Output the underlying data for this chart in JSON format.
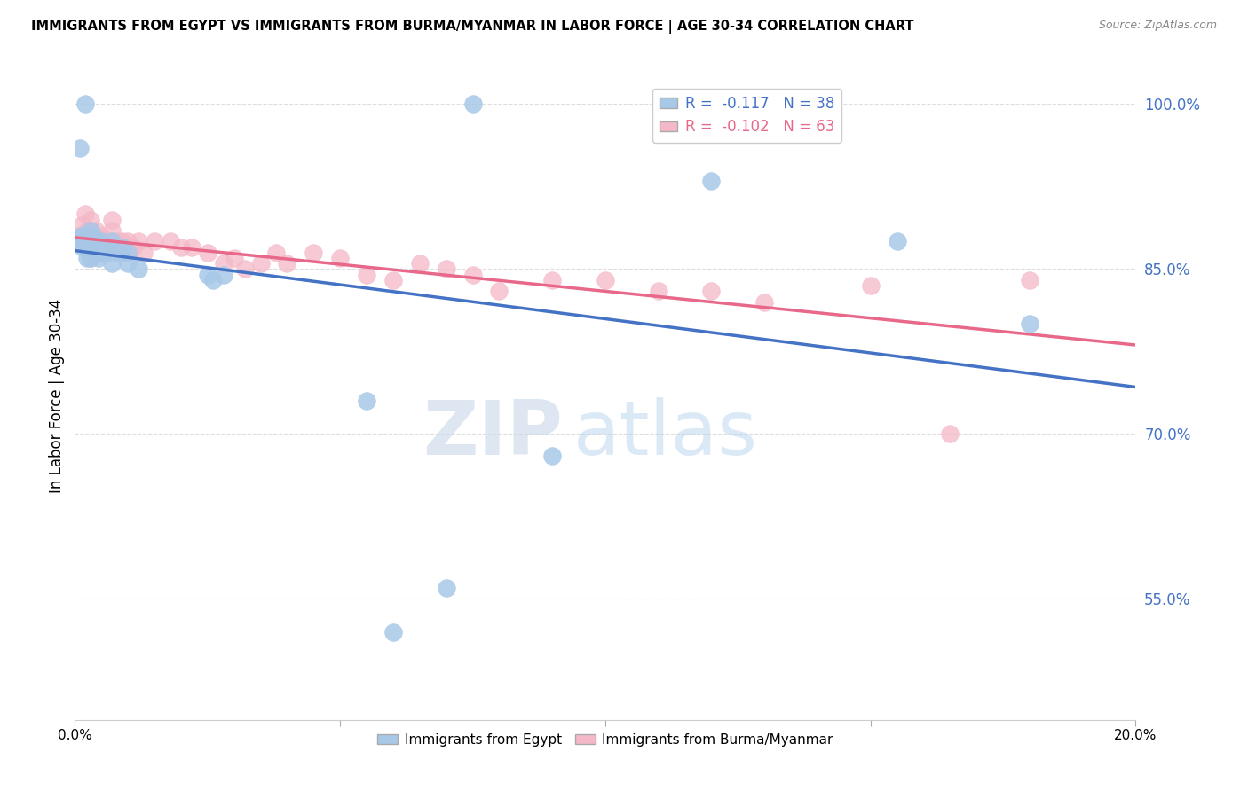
{
  "title": "IMMIGRANTS FROM EGYPT VS IMMIGRANTS FROM BURMA/MYANMAR IN LABOR FORCE | AGE 30-34 CORRELATION CHART",
  "source": "Source: ZipAtlas.com",
  "ylabel": "In Labor Force | Age 30-34",
  "xlim": [
    0.0,
    0.2
  ],
  "ylim": [
    0.44,
    1.03
  ],
  "egypt_R": -0.117,
  "egypt_N": 38,
  "burma_R": -0.102,
  "burma_N": 63,
  "egypt_color": "#a8c8e8",
  "burma_color": "#f4b8c8",
  "egypt_line_color": "#4472c4",
  "burma_line_color": "#e8688a",
  "legend_egypt_label": "Immigrants from Egypt",
  "legend_burma_label": "Immigrants from Burma/Myanmar",
  "watermark_zip": "ZIP",
  "watermark_atlas": "atlas",
  "background_color": "#ffffff",
  "grid_color": "#dddddd",
  "ytick_vals": [
    0.55,
    0.7,
    0.85,
    1.0
  ],
  "ytick_labels": [
    "55.0%",
    "70.0%",
    "85.0%",
    "100.0%"
  ],
  "egypt_x": [
    0.0005,
    0.001,
    0.0013,
    0.0015,
    0.0018,
    0.002,
    0.002,
    0.0022,
    0.0025,
    0.003,
    0.003,
    0.003,
    0.0035,
    0.004,
    0.004,
    0.0045,
    0.005,
    0.005,
    0.006,
    0.006,
    0.007,
    0.007,
    0.008,
    0.009,
    0.01,
    0.01,
    0.012,
    0.025,
    0.026,
    0.028,
    0.055,
    0.06,
    0.07,
    0.075,
    0.09,
    0.12,
    0.155,
    0.18
  ],
  "egypt_y": [
    0.878,
    0.96,
    0.88,
    0.87,
    0.88,
    0.875,
    1.0,
    0.86,
    0.87,
    0.875,
    0.86,
    0.885,
    0.88,
    0.87,
    0.875,
    0.86,
    0.865,
    0.875,
    0.865,
    0.87,
    0.875,
    0.855,
    0.865,
    0.87,
    0.855,
    0.865,
    0.85,
    0.845,
    0.84,
    0.845,
    0.73,
    0.52,
    0.56,
    1.0,
    0.68,
    0.93,
    0.875,
    0.8
  ],
  "burma_x": [
    0.0005,
    0.0008,
    0.001,
    0.001,
    0.0012,
    0.0015,
    0.0018,
    0.002,
    0.002,
    0.0022,
    0.0025,
    0.003,
    0.003,
    0.003,
    0.003,
    0.0035,
    0.004,
    0.004,
    0.004,
    0.0045,
    0.005,
    0.005,
    0.005,
    0.006,
    0.006,
    0.007,
    0.007,
    0.007,
    0.008,
    0.009,
    0.009,
    0.01,
    0.01,
    0.011,
    0.012,
    0.013,
    0.015,
    0.018,
    0.02,
    0.022,
    0.025,
    0.028,
    0.03,
    0.032,
    0.035,
    0.038,
    0.04,
    0.045,
    0.05,
    0.055,
    0.06,
    0.065,
    0.07,
    0.075,
    0.08,
    0.09,
    0.1,
    0.11,
    0.12,
    0.13,
    0.15,
    0.165,
    0.18
  ],
  "burma_y": [
    0.875,
    0.88,
    0.88,
    0.875,
    0.89,
    0.88,
    0.88,
    0.9,
    0.875,
    0.885,
    0.87,
    0.895,
    0.885,
    0.875,
    0.86,
    0.875,
    0.885,
    0.875,
    0.865,
    0.87,
    0.875,
    0.865,
    0.88,
    0.865,
    0.875,
    0.895,
    0.885,
    0.87,
    0.875,
    0.865,
    0.875,
    0.865,
    0.875,
    0.87,
    0.875,
    0.865,
    0.875,
    0.875,
    0.87,
    0.87,
    0.865,
    0.855,
    0.86,
    0.85,
    0.855,
    0.865,
    0.855,
    0.865,
    0.86,
    0.845,
    0.84,
    0.855,
    0.85,
    0.845,
    0.83,
    0.84,
    0.84,
    0.83,
    0.83,
    0.82,
    0.835,
    0.7,
    0.84
  ]
}
